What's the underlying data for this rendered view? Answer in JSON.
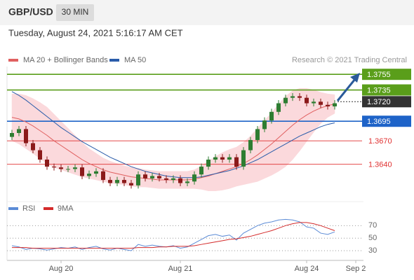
{
  "header": {
    "symbol": "GBP/USD",
    "timeframe": "30 MIN",
    "timestamp": "Tuesday, August 24, 2021 5:16:17 AM CET"
  },
  "chart_data": [
    {
      "type": "candlestick",
      "source": "Research © 2021 Trading Central",
      "categories": [
        null,
        null,
        null,
        null,
        null,
        null,
        null,
        "Aug 20",
        null,
        null,
        null,
        null,
        null,
        null,
        null,
        null,
        null,
        null,
        null,
        null,
        null,
        null,
        null,
        null,
        "Aug 21",
        null,
        null,
        null,
        null,
        null,
        null,
        null,
        null,
        null,
        null,
        null,
        null,
        null,
        null,
        null,
        null,
        null,
        "Aug 24",
        null,
        null,
        null,
        null,
        null,
        null,
        "Sep 2"
      ],
      "open": [
        1.3675,
        1.368,
        1.3685,
        1.3667,
        1.3658,
        1.3646,
        1.3637,
        1.3636,
        1.3634,
        1.3634,
        1.3636,
        1.3625,
        1.3628,
        1.3631,
        1.362,
        1.3616,
        1.362,
        1.3616,
        1.3613,
        1.3627,
        1.3622,
        1.3625,
        1.3622,
        1.362,
        1.3622,
        1.3616,
        1.3618,
        1.3627,
        1.3637,
        1.3646,
        1.3649,
        1.3646,
        1.3649,
        1.3637,
        1.3658,
        1.3671,
        1.3685,
        1.3696,
        1.3707,
        1.3718,
        1.3725,
        1.3727,
        1.3725,
        1.3718,
        1.372,
        1.3716,
        1.3714,
        null,
        null,
        null
      ],
      "high": [
        1.3684,
        1.3689,
        1.3689,
        1.3671,
        1.3662,
        1.365,
        1.3641,
        1.364,
        1.3638,
        1.364,
        1.364,
        1.3632,
        1.3635,
        1.3635,
        1.3624,
        1.3624,
        1.3624,
        1.362,
        1.3631,
        1.3631,
        1.3629,
        1.3629,
        1.3626,
        1.3626,
        1.3626,
        1.3622,
        1.3631,
        1.3641,
        1.365,
        1.3653,
        1.3653,
        1.3653,
        1.3653,
        1.3662,
        1.3675,
        1.3689,
        1.37,
        1.3711,
        1.3722,
        1.3729,
        1.3731,
        1.3731,
        1.3729,
        1.3724,
        1.3724,
        1.372,
        1.3722,
        null,
        null,
        null
      ],
      "low": [
        1.3671,
        1.3676,
        1.3663,
        1.3654,
        1.3642,
        1.3633,
        1.3632,
        1.363,
        1.363,
        1.363,
        1.3621,
        1.3621,
        1.3624,
        1.3616,
        1.3612,
        1.3612,
        1.3612,
        1.3609,
        1.3609,
        1.3618,
        1.3618,
        1.3618,
        1.3616,
        1.3616,
        1.3612,
        1.3612,
        1.3614,
        1.3623,
        1.3633,
        1.3642,
        1.3642,
        1.3642,
        1.3633,
        1.3633,
        1.3654,
        1.3667,
        1.3681,
        1.3692,
        1.3703,
        1.3714,
        1.3721,
        1.3721,
        1.3714,
        1.3714,
        1.3712,
        1.371,
        1.371,
        null,
        null,
        null
      ],
      "close": [
        1.368,
        1.3685,
        1.3667,
        1.3658,
        1.3646,
        1.3637,
        1.3636,
        1.3634,
        1.3634,
        1.3636,
        1.3625,
        1.3628,
        1.3631,
        1.362,
        1.3616,
        1.362,
        1.3616,
        1.3613,
        1.3627,
        1.3622,
        1.3625,
        1.3622,
        1.362,
        1.3622,
        1.3616,
        1.3618,
        1.3627,
        1.3637,
        1.3646,
        1.3649,
        1.3646,
        1.3649,
        1.3637,
        1.3658,
        1.3671,
        1.3685,
        1.3696,
        1.3707,
        1.3718,
        1.3725,
        1.3727,
        1.3725,
        1.3718,
        1.372,
        1.3716,
        1.3714,
        1.3718,
        null,
        null,
        null
      ],
      "up_color": "#2e7d32",
      "down_color": "#8b1a1a",
      "series": [
        {
          "name": "MA 20 + Bollinger Bands",
          "color": "#e06060",
          "band_color": "#fbd9dc",
          "values": [
            1.37,
            1.3698,
            1.3694,
            1.3689,
            1.3683,
            1.3677,
            1.367,
            1.3664,
            1.3658,
            1.3652,
            1.3646,
            1.3641,
            1.3637,
            1.3633,
            1.363,
            1.3628,
            1.3626,
            1.3624,
            1.3623,
            1.3622,
            1.3621,
            1.362,
            1.362,
            1.362,
            1.362,
            1.362,
            1.3621,
            1.3623,
            1.3625,
            1.3628,
            1.3631,
            1.3634,
            1.3637,
            1.3641,
            1.3646,
            1.3652,
            1.3659,
            1.3666,
            1.3674,
            1.3682,
            1.369,
            1.3697,
            1.3703,
            1.3708,
            1.3712,
            1.3715,
            1.3717,
            null,
            null,
            null
          ],
          "upper": [
            1.373,
            1.373,
            1.3728,
            1.3724,
            1.3719,
            1.3713,
            1.3704,
            1.3695,
            1.3686,
            1.3677,
            1.3668,
            1.366,
            1.3654,
            1.3648,
            1.3644,
            1.3641,
            1.3638,
            1.3636,
            1.3635,
            1.3633,
            1.3632,
            1.3631,
            1.3631,
            1.3631,
            1.3631,
            1.3631,
            1.3633,
            1.3638,
            1.3644,
            1.365,
            1.3655,
            1.3659,
            1.3662,
            1.3668,
            1.3676,
            1.3686,
            1.3696,
            1.3706,
            1.3717,
            1.3727,
            1.3734,
            1.3737,
            1.3737,
            1.3735,
            1.3732,
            1.373,
            1.3729,
            null,
            null,
            null
          ],
          "lower": [
            1.367,
            1.3666,
            1.366,
            1.3654,
            1.3647,
            1.3641,
            1.3636,
            1.3633,
            1.363,
            1.3627,
            1.3624,
            1.3622,
            1.362,
            1.3618,
            1.3616,
            1.3615,
            1.3614,
            1.3612,
            1.3611,
            1.3611,
            1.361,
            1.3609,
            1.3609,
            1.3609,
            1.3609,
            1.3609,
            1.3609,
            1.3608,
            1.3606,
            1.3606,
            1.3607,
            1.3609,
            1.3612,
            1.3614,
            1.3616,
            1.3618,
            1.3622,
            1.3626,
            1.3631,
            1.3637,
            1.3646,
            1.3657,
            1.3669,
            1.3681,
            1.3692,
            1.37,
            1.3705,
            null,
            null,
            null
          ]
        },
        {
          "name": "MA 50",
          "color": "#2a5caa",
          "values": [
            1.3733,
            1.3728,
            1.3722,
            1.3715,
            1.3708,
            1.3701,
            1.3694,
            1.3687,
            1.3681,
            1.3675,
            1.3669,
            1.3664,
            1.3659,
            1.3654,
            1.3649,
            1.3645,
            1.3641,
            1.3637,
            1.3634,
            1.3631,
            1.3629,
            1.3627,
            1.3625,
            1.3624,
            1.3623,
            1.3623,
            1.3623,
            1.3624,
            1.3626,
            1.3628,
            1.363,
            1.3632,
            1.3635,
            1.3638,
            1.3642,
            1.3646,
            1.3651,
            1.3656,
            1.3661,
            1.3666,
            1.3671,
            1.3676,
            1.368,
            1.3684,
            1.3688,
            1.3691,
            1.3693,
            null,
            null,
            null
          ]
        }
      ],
      "levels": [
        {
          "value": 1.3755,
          "label": "1.3755",
          "color": "#5a9e1a",
          "style": "box-line"
        },
        {
          "value": 1.3735,
          "label": "1.3735",
          "color": "#5a9e1a",
          "style": "box-line"
        },
        {
          "value": 1.372,
          "label": "1.3720",
          "color": "#333333",
          "style": "box-dotted"
        },
        {
          "value": 1.3695,
          "label": "1.3695",
          "color": "#1e63c8",
          "style": "box-line"
        },
        {
          "value": 1.367,
          "label": "1.3670",
          "color": "#e03030",
          "style": "text-line"
        },
        {
          "value": 1.364,
          "label": "1.3640",
          "color": "#e03030",
          "style": "text-line"
        }
      ],
      "ylim": [
        1.3595,
        1.3765
      ]
    },
    {
      "type": "line",
      "series": [
        {
          "name": "RSI",
          "color": "#5b8bd6",
          "values": [
            38,
            36,
            32,
            34,
            33,
            31,
            33,
            35,
            34,
            36,
            32,
            35,
            37,
            33,
            31,
            34,
            32,
            30,
            40,
            37,
            39,
            37,
            36,
            38,
            34,
            36,
            42,
            48,
            54,
            56,
            53,
            55,
            47,
            58,
            64,
            70,
            74,
            76,
            79,
            80,
            79,
            76,
            68,
            66,
            58,
            56,
            60,
            null,
            null,
            null
          ]
        },
        {
          "name": "9MA",
          "color": "#d42a2a",
          "values": [
            35,
            35,
            35,
            34,
            34,
            34,
            34,
            34,
            34,
            34,
            34,
            34,
            34,
            34,
            34,
            34,
            34,
            34,
            35,
            35,
            35,
            36,
            36,
            37,
            37,
            37,
            38,
            40,
            42,
            44,
            46,
            48,
            49,
            51,
            53,
            56,
            59,
            62,
            66,
            70,
            73,
            75,
            75,
            73,
            70,
            66,
            62,
            null,
            null,
            null
          ]
        }
      ],
      "ylim": [
        19,
        86
      ],
      "yticks": [
        30,
        50,
        70
      ]
    }
  ]
}
